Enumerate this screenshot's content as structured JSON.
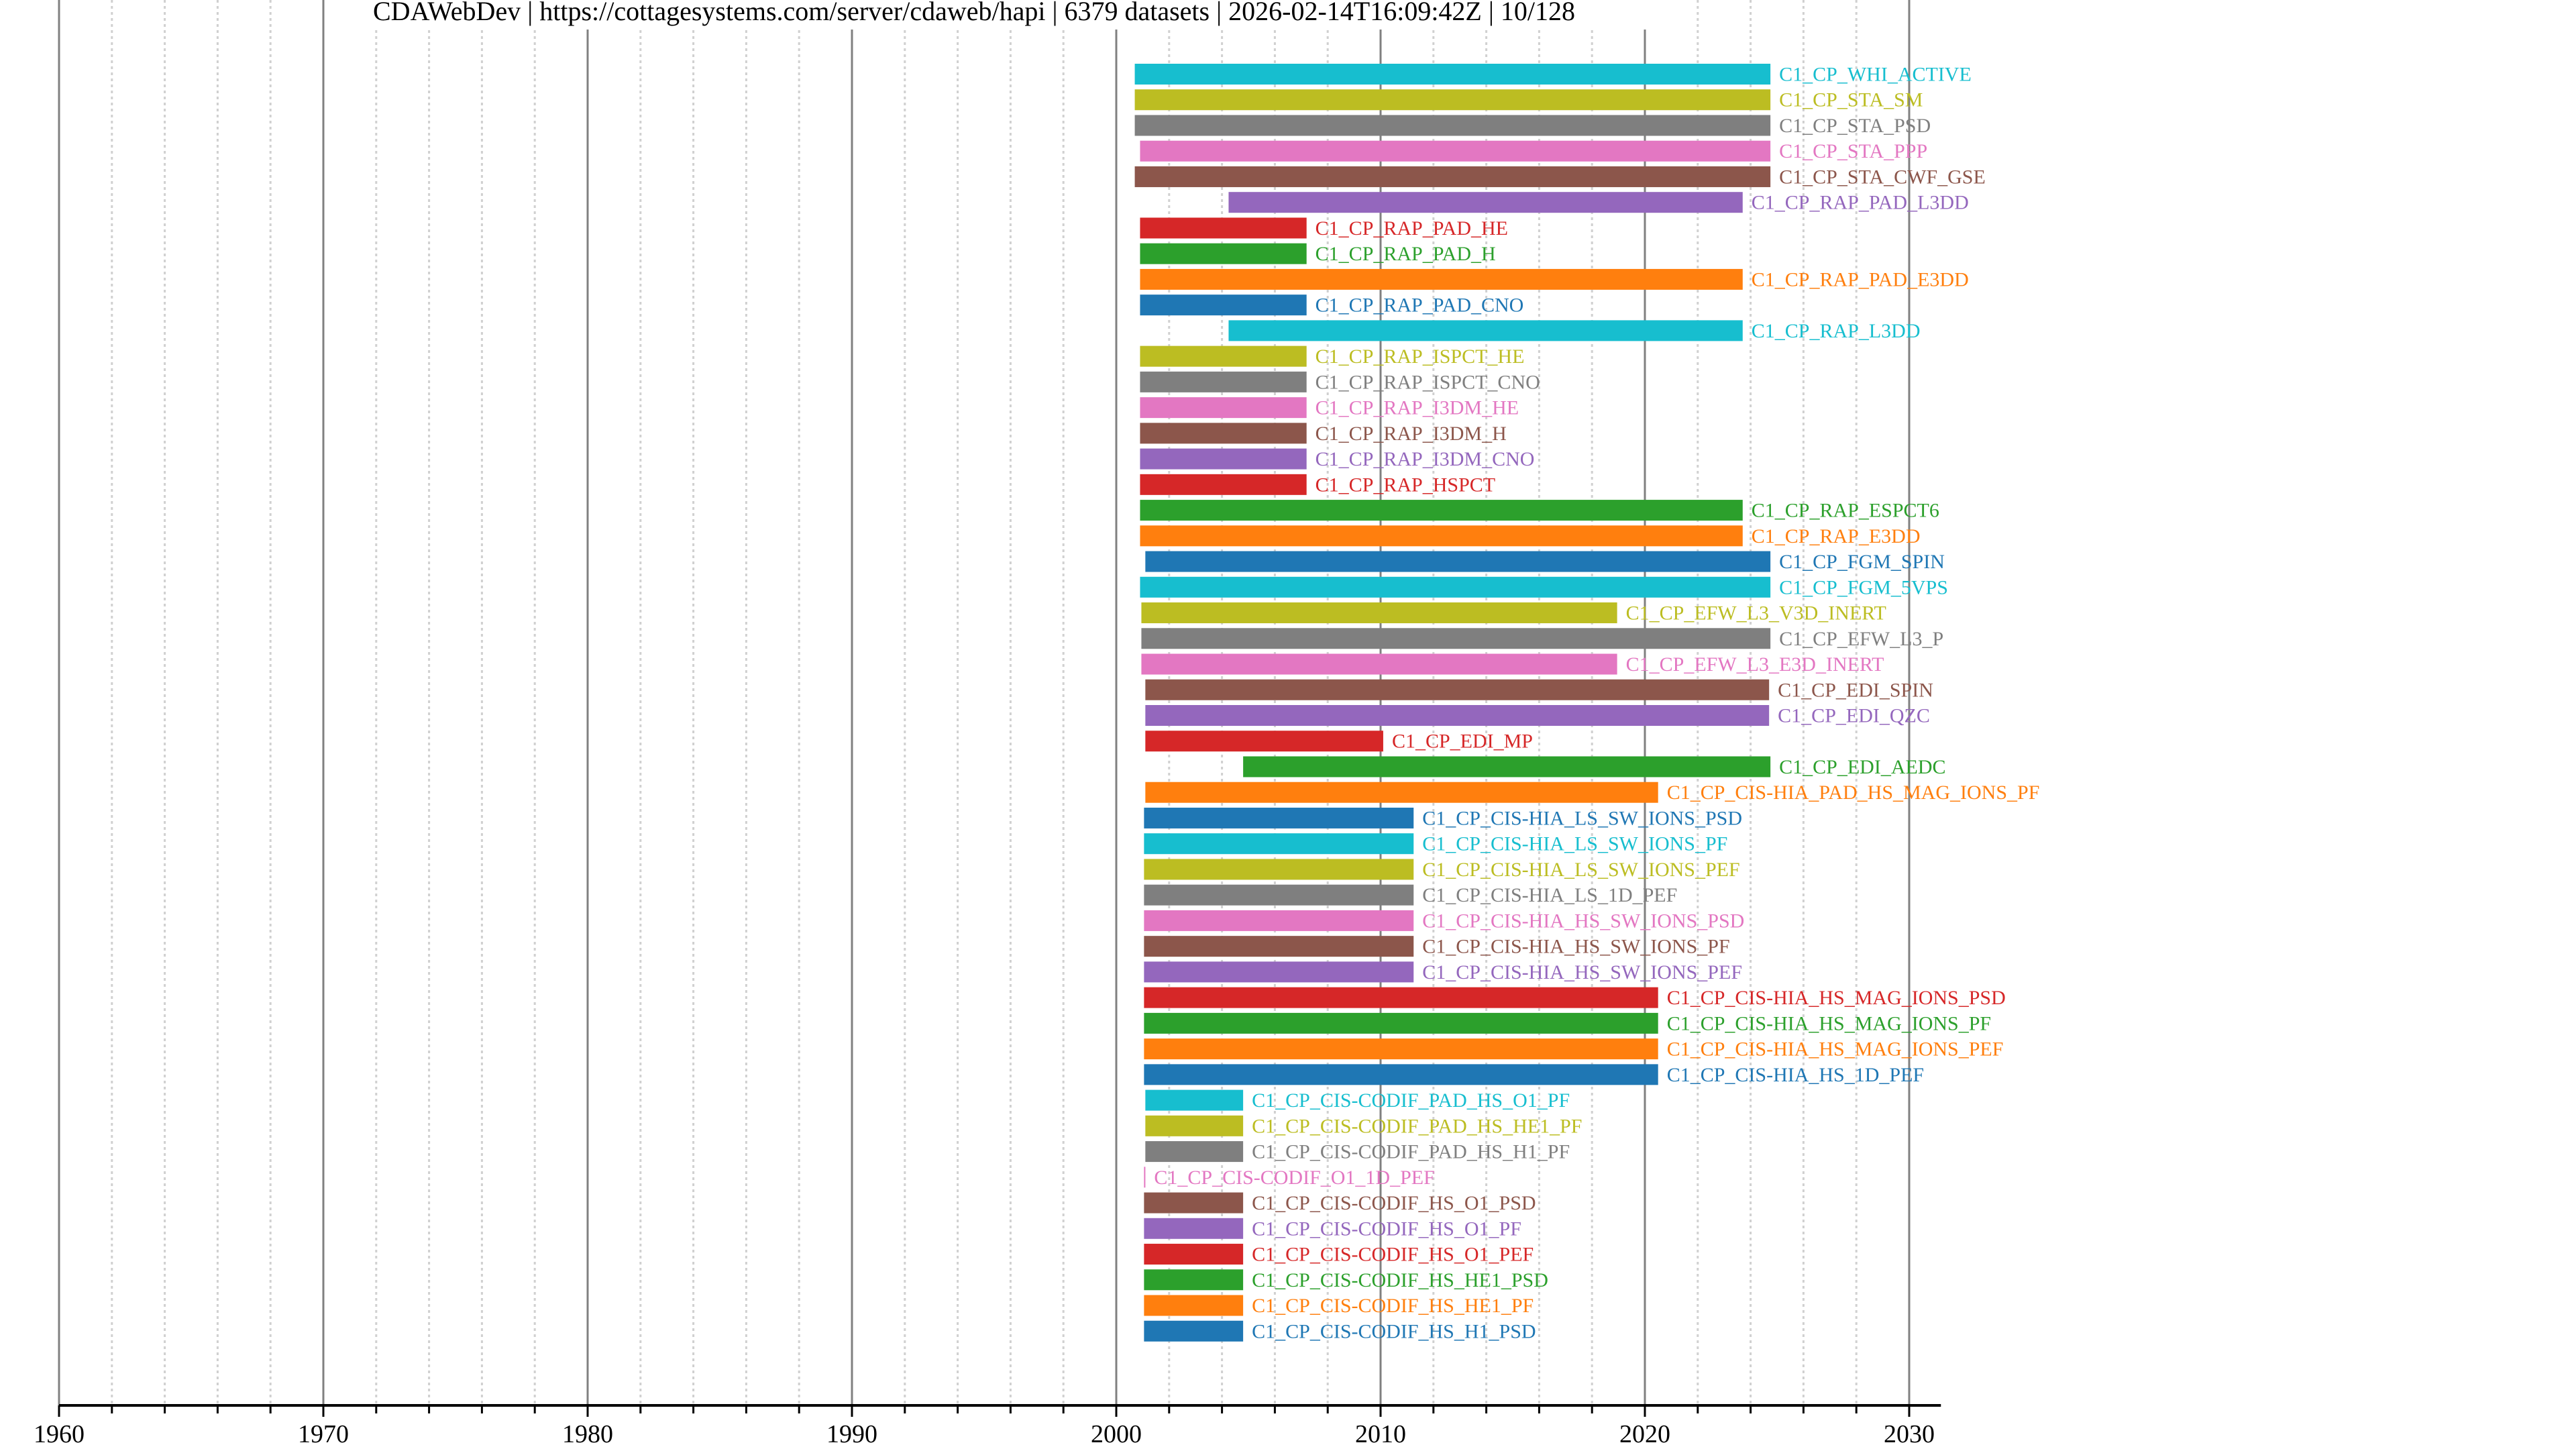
{
  "title": {
    "server_name": "CDAWebDev",
    "url": "https://cottagesystems.com/server/cdaweb/hapi",
    "dataset_count": "6379 datasets",
    "timestamp": "2026-02-14T16:09:42Z",
    "page": "10/128",
    "separator": " | "
  },
  "chart_data": {
    "type": "bar",
    "orientation": "horizontal-timeline",
    "title": "CDAWebDev | https://cottagesystems.com/server/cdaweb/hapi | 6379 datasets | 2026-02-14T16:09:42Z | 10/128",
    "xlabel": "",
    "ylabel": "",
    "xlim": [
      1960,
      2031.2
    ],
    "x_ticks": [
      1960,
      1970,
      1980,
      1990,
      2000,
      2010,
      2020,
      2030
    ],
    "x_minor_step": 2,
    "grid": "major solid, minor dotted",
    "legend": "none (labels at bar ends)",
    "palette": [
      "#1f77b4",
      "#ff7f0e",
      "#2ca02c",
      "#d62728",
      "#9467bd",
      "#8c564b",
      "#e377c2",
      "#7f7f7f",
      "#bcbd22",
      "#17becf"
    ],
    "series": [
      {
        "name": "C1_CP_WHI_ACTIVE",
        "start": 2000.7,
        "end": 2024.75,
        "color": "#17becf"
      },
      {
        "name": "C1_CP_STA_SM",
        "start": 2000.7,
        "end": 2024.75,
        "color": "#bcbd22"
      },
      {
        "name": "C1_CP_STA_PSD",
        "start": 2000.7,
        "end": 2024.75,
        "color": "#7f7f7f"
      },
      {
        "name": "C1_CP_STA_PPP",
        "start": 2000.9,
        "end": 2024.75,
        "color": "#e377c2"
      },
      {
        "name": "C1_CP_STA_CWF_GSE",
        "start": 2000.7,
        "end": 2024.75,
        "color": "#8c564b"
      },
      {
        "name": "C1_CP_RAP_PAD_L3DD",
        "start": 2004.25,
        "end": 2023.7,
        "color": "#9467bd"
      },
      {
        "name": "C1_CP_RAP_PAD_HE",
        "start": 2000.9,
        "end": 2007.2,
        "color": "#d62728"
      },
      {
        "name": "C1_CP_RAP_PAD_H",
        "start": 2000.9,
        "end": 2007.2,
        "color": "#2ca02c"
      },
      {
        "name": "C1_CP_RAP_PAD_E3DD",
        "start": 2000.9,
        "end": 2023.7,
        "color": "#ff7f0e"
      },
      {
        "name": "C1_CP_RAP_PAD_CNO",
        "start": 2000.9,
        "end": 2007.2,
        "color": "#1f77b4"
      },
      {
        "name": "C1_CP_RAP_L3DD",
        "start": 2004.25,
        "end": 2023.7,
        "color": "#17becf"
      },
      {
        "name": "C1_CP_RAP_ISPCT_HE",
        "start": 2000.9,
        "end": 2007.2,
        "color": "#bcbd22"
      },
      {
        "name": "C1_CP_RAP_ISPCT_CNO",
        "start": 2000.9,
        "end": 2007.2,
        "color": "#7f7f7f"
      },
      {
        "name": "C1_CP_RAP_I3DM_HE",
        "start": 2000.9,
        "end": 2007.2,
        "color": "#e377c2"
      },
      {
        "name": "C1_CP_RAP_I3DM_H",
        "start": 2000.9,
        "end": 2007.2,
        "color": "#8c564b"
      },
      {
        "name": "C1_CP_RAP_I3DM_CNO",
        "start": 2000.9,
        "end": 2007.2,
        "color": "#9467bd"
      },
      {
        "name": "C1_CP_RAP_HSPCT",
        "start": 2000.9,
        "end": 2007.2,
        "color": "#d62728"
      },
      {
        "name": "C1_CP_RAP_ESPCT6",
        "start": 2000.9,
        "end": 2023.7,
        "color": "#2ca02c"
      },
      {
        "name": "C1_CP_RAP_E3DD",
        "start": 2000.9,
        "end": 2023.7,
        "color": "#ff7f0e"
      },
      {
        "name": "C1_CP_FGM_SPIN",
        "start": 2001.1,
        "end": 2024.75,
        "color": "#1f77b4"
      },
      {
        "name": "C1_CP_FGM_5VPS",
        "start": 2000.9,
        "end": 2024.75,
        "color": "#17becf"
      },
      {
        "name": "C1_CP_EFW_L3_V3D_INERT",
        "start": 2000.95,
        "end": 2018.95,
        "color": "#bcbd22"
      },
      {
        "name": "C1_CP_EFW_L3_P",
        "start": 2000.95,
        "end": 2024.75,
        "color": "#7f7f7f"
      },
      {
        "name": "C1_CP_EFW_L3_E3D_INERT",
        "start": 2000.95,
        "end": 2018.95,
        "color": "#e377c2"
      },
      {
        "name": "C1_CP_EDI_SPIN",
        "start": 2001.1,
        "end": 2024.7,
        "color": "#8c564b"
      },
      {
        "name": "C1_CP_EDI_QZC",
        "start": 2001.1,
        "end": 2024.7,
        "color": "#9467bd"
      },
      {
        "name": "C1_CP_EDI_MP",
        "start": 2001.1,
        "end": 2010.1,
        "color": "#d62728"
      },
      {
        "name": "C1_CP_EDI_AEDC",
        "start": 2004.8,
        "end": 2024.75,
        "color": "#2ca02c"
      },
      {
        "name": "C1_CP_CIS-HIA_PAD_HS_MAG_IONS_PF",
        "start": 2001.1,
        "end": 2020.5,
        "color": "#ff7f0e"
      },
      {
        "name": "C1_CP_CIS-HIA_LS_SW_IONS_PSD",
        "start": 2001.05,
        "end": 2011.25,
        "color": "#1f77b4"
      },
      {
        "name": "C1_CP_CIS-HIA_LS_SW_IONS_PF",
        "start": 2001.05,
        "end": 2011.25,
        "color": "#17becf"
      },
      {
        "name": "C1_CP_CIS-HIA_LS_SW_IONS_PEF",
        "start": 2001.05,
        "end": 2011.25,
        "color": "#bcbd22"
      },
      {
        "name": "C1_CP_CIS-HIA_LS_1D_PEF",
        "start": 2001.05,
        "end": 2011.25,
        "color": "#7f7f7f"
      },
      {
        "name": "C1_CP_CIS-HIA_HS_SW_IONS_PSD",
        "start": 2001.05,
        "end": 2011.25,
        "color": "#e377c2"
      },
      {
        "name": "C1_CP_CIS-HIA_HS_SW_IONS_PF",
        "start": 2001.05,
        "end": 2011.25,
        "color": "#8c564b"
      },
      {
        "name": "C1_CP_CIS-HIA_HS_SW_IONS_PEF",
        "start": 2001.05,
        "end": 2011.25,
        "color": "#9467bd"
      },
      {
        "name": "C1_CP_CIS-HIA_HS_MAG_IONS_PSD",
        "start": 2001.05,
        "end": 2020.5,
        "color": "#d62728"
      },
      {
        "name": "C1_CP_CIS-HIA_HS_MAG_IONS_PF",
        "start": 2001.05,
        "end": 2020.5,
        "color": "#2ca02c"
      },
      {
        "name": "C1_CP_CIS-HIA_HS_MAG_IONS_PEF",
        "start": 2001.05,
        "end": 2020.5,
        "color": "#ff7f0e"
      },
      {
        "name": "C1_CP_CIS-HIA_HS_1D_PEF",
        "start": 2001.05,
        "end": 2020.5,
        "color": "#1f77b4"
      },
      {
        "name": "C1_CP_CIS-CODIF_PAD_HS_O1_PF",
        "start": 2001.1,
        "end": 2004.8,
        "color": "#17becf"
      },
      {
        "name": "C1_CP_CIS-CODIF_PAD_HS_HE1_PF",
        "start": 2001.1,
        "end": 2004.8,
        "color": "#bcbd22"
      },
      {
        "name": "C1_CP_CIS-CODIF_PAD_HS_H1_PF",
        "start": 2001.1,
        "end": 2004.8,
        "color": "#7f7f7f"
      },
      {
        "name": "C1_CP_CIS-CODIF_O1_1D_PEF",
        "start": 2001.05,
        "end": 2001.07,
        "color": "#e377c2"
      },
      {
        "name": "C1_CP_CIS-CODIF_HS_O1_PSD",
        "start": 2001.05,
        "end": 2004.8,
        "color": "#8c564b"
      },
      {
        "name": "C1_CP_CIS-CODIF_HS_O1_PF",
        "start": 2001.05,
        "end": 2004.8,
        "color": "#9467bd"
      },
      {
        "name": "C1_CP_CIS-CODIF_HS_O1_PEF",
        "start": 2001.05,
        "end": 2004.8,
        "color": "#d62728"
      },
      {
        "name": "C1_CP_CIS-CODIF_HS_HE1_PSD",
        "start": 2001.05,
        "end": 2004.8,
        "color": "#2ca02c"
      },
      {
        "name": "C1_CP_CIS-CODIF_HS_HE1_PF",
        "start": 2001.05,
        "end": 2004.8,
        "color": "#ff7f0e"
      },
      {
        "name": "C1_CP_CIS-CODIF_HS_H1_PSD",
        "start": 2001.05,
        "end": 2004.8,
        "color": "#1f77b4"
      }
    ]
  }
}
